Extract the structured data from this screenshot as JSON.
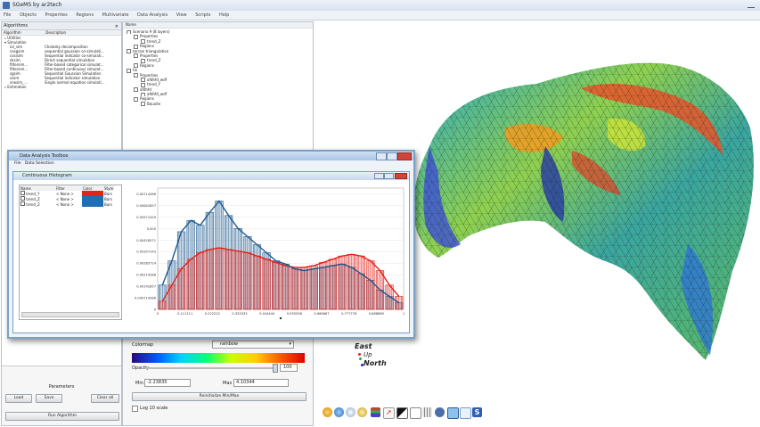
{
  "window": {
    "title": "SGeMS by ar2tech"
  },
  "menu": [
    "File",
    "Objects",
    "Properties",
    "Regions",
    "Multivariate",
    "Data Analysis",
    "View",
    "Scripts",
    "Help"
  ],
  "algo_panel": {
    "title": "Algorithms",
    "col_algorithm": "Algorithm",
    "col_description": "Description",
    "groups": [
      "Utilities",
      "Simulation",
      "Estimation"
    ],
    "items": [
      {
        "name": "LU_sim",
        "desc": "Cholesky decomposition"
      },
      {
        "name": "cosgsim",
        "desc": "sequential gaussian co-simulati..."
      },
      {
        "name": "cosisim",
        "desc": "Sequential indicator co-simulati..."
      },
      {
        "name": "dssim",
        "desc": "Direct sequential simulation"
      },
      {
        "name": "filtersim...",
        "desc": "Filter-based categorical simulat..."
      },
      {
        "name": "filtersim...",
        "desc": "Filter-based continuous simulat..."
      },
      {
        "name": "sgsim",
        "desc": "Sequential Gaussian Simulation"
      },
      {
        "name": "sisim",
        "desc": "Sequential indicator simulation"
      },
      {
        "name": "snesim_...",
        "desc": "Single normal equation simulati..."
      }
    ],
    "parameters_label": "Parameters",
    "load": "Load",
    "save": "Save",
    "clear_all": "Clear all",
    "run": "Run Algorithm"
  },
  "objects_panel": {
    "header": "Name",
    "tree": [
      {
        "label": "Scenario 9 (8 layers)",
        "level": 0
      },
      {
        "label": "Properties",
        "level": 1
      },
      {
        "label": "trend_Z",
        "level": 2
      },
      {
        "label": "Regions",
        "level": 1
      },
      {
        "label": "terrain triangulation",
        "level": 0
      },
      {
        "label": "Properties",
        "level": 1
      },
      {
        "label": "trend_Z",
        "level": 2
      },
      {
        "label": "Regions",
        "level": 1
      },
      {
        "label": "tin",
        "level": 0
      },
      {
        "label": "Properties",
        "level": 1
      },
      {
        "label": "afdhfd_wdf",
        "level": 2
      },
      {
        "label": "trend_Y",
        "level": 2
      },
      {
        "label": "afdhfd",
        "level": 1
      },
      {
        "label": "afdhfd_wdf",
        "level": 2
      },
      {
        "label": "Regions",
        "level": 1
      },
      {
        "label": "Bauxite",
        "level": 2
      }
    ]
  },
  "colormap": {
    "label": "Colormap",
    "value": "rainbow",
    "opacity_label": "Opacity",
    "opacity_value": "100",
    "min_label": "Min",
    "min_value": "-2.23835",
    "max_label": "Max",
    "max_value": "4.10344",
    "reset": "Reinitialize Min/Max",
    "log_scale": "Log 10 scale"
  },
  "dialog": {
    "title": "Data Analysis Toolbox",
    "menu": [
      "File",
      "Data Selection"
    ],
    "histogram_title": "Continuous Histogram",
    "legend_headers": [
      "Name",
      "Filter",
      "Color",
      "Style"
    ],
    "legend": [
      {
        "name": "trend_Y",
        "filter": "< None >",
        "color": "#e2231a",
        "style": "Bars"
      },
      {
        "name": "trend_Z",
        "filter": "< None >",
        "color": "#1f6fb5",
        "style": "Bars"
      },
      {
        "name": "trend_Z",
        "filter": "< None >",
        "color": "#1f6fb5",
        "style": "Bars"
      }
    ]
  },
  "chart_data": {
    "type": "bar",
    "yticks": [
      "0.00714286",
      "0.00642857",
      "0.00571429",
      "0.005",
      "0.00428571",
      "0.00357143",
      "0.00285714",
      "0.00214286",
      "0.00142857",
      "0.000714286",
      "0"
    ],
    "xticks": [
      "0",
      "0.111111",
      "0.222222",
      "0.333333",
      "0.444444",
      "0.555556",
      "0.666667",
      "0.777778",
      "0.888889",
      "1"
    ],
    "ylim": [
      0,
      0.0075
    ],
    "xlim": [
      0,
      1
    ],
    "series": [
      {
        "name": "trend_Y",
        "color": "#e2231a",
        "values": [
          0.0005,
          0.0015,
          0.0025,
          0.0031,
          0.0035,
          0.0037,
          0.0038,
          0.0037,
          0.0036,
          0.0035,
          0.0033,
          0.0031,
          0.0029,
          0.0027,
          0.0026,
          0.0026,
          0.0027,
          0.0029,
          0.0031,
          0.0033,
          0.0034,
          0.0033,
          0.003,
          0.0024,
          0.0015,
          0.0008
        ]
      },
      {
        "name": "trend_Z",
        "color": "#1f5a8f",
        "values": [
          0.0015,
          0.003,
          0.0048,
          0.0055,
          0.0052,
          0.006,
          0.0067,
          0.0058,
          0.005,
          0.0045,
          0.004,
          0.0035,
          0.003,
          0.0028,
          0.0025,
          0.0024,
          0.0025,
          0.0026,
          0.0027,
          0.0028,
          0.0026,
          0.0022,
          0.0018,
          0.0012,
          0.0008,
          0.0004
        ]
      }
    ]
  },
  "view3d": {
    "compass_east": "East",
    "compass_up": "Up",
    "compass_north": "North"
  }
}
